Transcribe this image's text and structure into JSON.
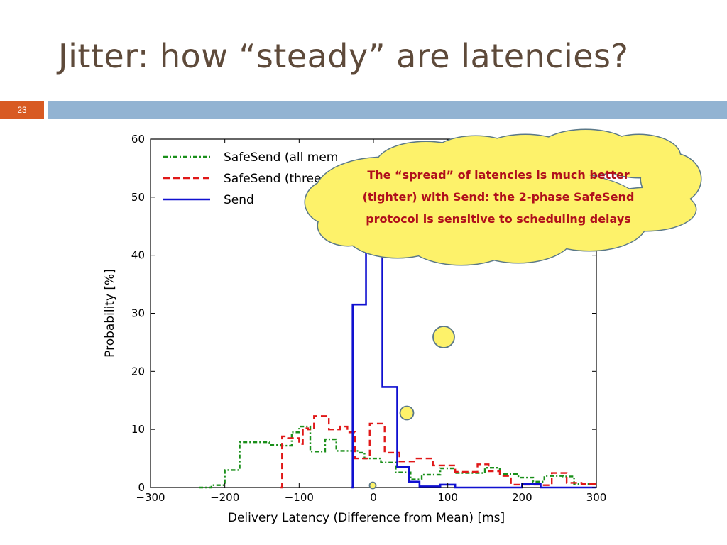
{
  "slide": {
    "title": "Jitter: how “steady” are latencies?",
    "page_number": "23",
    "accent_color": "#d85a22",
    "bar_color": "#92b3d2"
  },
  "callout": {
    "text": "The “spread” of latencies is much better (tighter) with Send: the 2-phase SafeSend protocol is sensitive to scheduling delays"
  },
  "chart_data": {
    "type": "line",
    "xlabel": "Delivery Latency (Difference from Mean) [ms]",
    "ylabel": "Probability [%]",
    "xlim": [
      -300,
      300
    ],
    "ylim": [
      0,
      60
    ],
    "xticks": [
      "−300",
      "−200",
      "−100",
      "0",
      "100",
      "200",
      "300"
    ],
    "yticks": [
      "0",
      "10",
      "20",
      "30",
      "40",
      "50",
      "60"
    ],
    "grid": false,
    "legend_position": "top-left",
    "series": [
      {
        "name": "SafeSend (all mem",
        "color": "#1a8f1a",
        "style": "dashdot",
        "steps": [
          [
            -235,
            0
          ],
          [
            -218,
            0.4
          ],
          [
            -200,
            3
          ],
          [
            -180,
            7.8
          ],
          [
            -140,
            7.3
          ],
          [
            -125,
            7.2
          ],
          [
            -110,
            9.5
          ],
          [
            -100,
            10.5
          ],
          [
            -85,
            6.2
          ],
          [
            -65,
            8.3
          ],
          [
            -50,
            6.3
          ],
          [
            -20,
            6
          ],
          [
            -12,
            5
          ],
          [
            10,
            4.3
          ],
          [
            30,
            2.6
          ],
          [
            50,
            1.4
          ],
          [
            65,
            2.2
          ],
          [
            90,
            3.3
          ],
          [
            110,
            2.5
          ],
          [
            150,
            3.4
          ],
          [
            170,
            2.3
          ],
          [
            195,
            1.7
          ],
          [
            215,
            1
          ],
          [
            230,
            2
          ],
          [
            255,
            1.9
          ],
          [
            270,
            0.6
          ],
          [
            300,
            0.6
          ]
        ]
      },
      {
        "name": "SafeSend (three",
        "color": "#e01818",
        "style": "dashed",
        "steps": [
          [
            -125,
            0
          ],
          [
            -123,
            8.8
          ],
          [
            -115,
            8.5
          ],
          [
            -100,
            7.5
          ],
          [
            -95,
            10.2
          ],
          [
            -88,
            10
          ],
          [
            -80,
            12.3
          ],
          [
            -60,
            10
          ],
          [
            -45,
            10.5
          ],
          [
            -35,
            9.5
          ],
          [
            -25,
            5
          ],
          [
            -5,
            11
          ],
          [
            15,
            6
          ],
          [
            35,
            4.5
          ],
          [
            55,
            5
          ],
          [
            80,
            3.8
          ],
          [
            110,
            2.7
          ],
          [
            140,
            4
          ],
          [
            155,
            2.8
          ],
          [
            170,
            2
          ],
          [
            185,
            0.5
          ],
          [
            205,
            0.5
          ],
          [
            225,
            0.4
          ],
          [
            240,
            2.5
          ],
          [
            260,
            0.8
          ],
          [
            280,
            0.6
          ],
          [
            300,
            0.6
          ]
        ]
      },
      {
        "name": "Send",
        "color": "#1010d0",
        "style": "solid",
        "steps": [
          [
            -30,
            0
          ],
          [
            -28,
            31.5
          ],
          [
            -10,
            42
          ],
          [
            0,
            47
          ],
          [
            12,
            17.3
          ],
          [
            32,
            3.5
          ],
          [
            48,
            1
          ],
          [
            62,
            0.2
          ],
          [
            90,
            0.5
          ],
          [
            110,
            0
          ],
          [
            150,
            0
          ],
          [
            170,
            0
          ],
          [
            200,
            0.6
          ],
          [
            225,
            0
          ],
          [
            300,
            0
          ]
        ]
      }
    ]
  }
}
